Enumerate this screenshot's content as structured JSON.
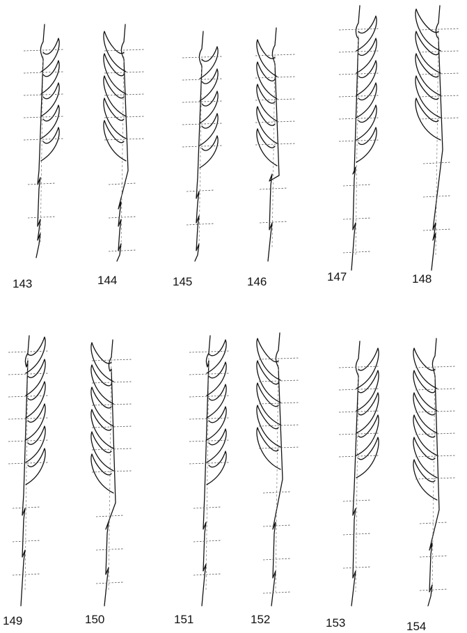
{
  "figures": [
    {
      "label": "143"
    },
    {
      "label": "144"
    },
    {
      "label": "145"
    },
    {
      "label": "146"
    },
    {
      "label": "147"
    },
    {
      "label": "148"
    },
    {
      "label": "149"
    },
    {
      "label": "150"
    },
    {
      "label": "151"
    },
    {
      "label": "152"
    },
    {
      "label": "153"
    },
    {
      "label": "154"
    }
  ],
  "colors": {
    "ink": "#111111",
    "paper": "#ffffff"
  }
}
